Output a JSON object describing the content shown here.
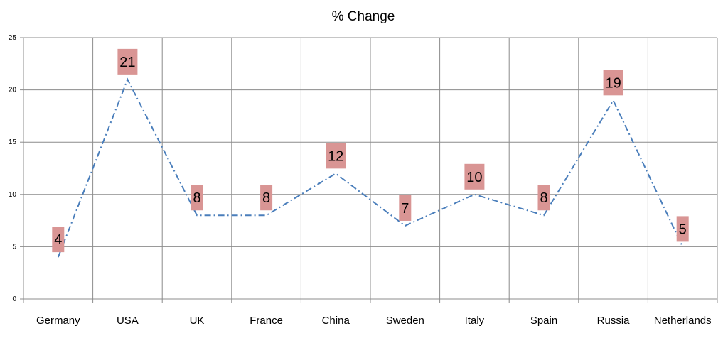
{
  "chart_data": {
    "type": "line",
    "title": "% Change",
    "categories": [
      "Germany",
      "USA",
      "UK",
      "France",
      "China",
      "Sweden",
      "Italy",
      "Spain",
      "Russia",
      "Netherlands"
    ],
    "values": [
      4,
      21,
      8,
      8,
      12,
      7,
      10,
      8,
      19,
      5
    ],
    "ylim": [
      0,
      25
    ],
    "yticks": [
      0,
      5,
      10,
      15,
      20,
      25
    ],
    "xlabel": "",
    "ylabel": "",
    "grid": true,
    "legend": "none",
    "colors": {
      "line": "#4a7ebb",
      "label_bg": "#d99594",
      "grid": "#8c8c8c"
    }
  }
}
